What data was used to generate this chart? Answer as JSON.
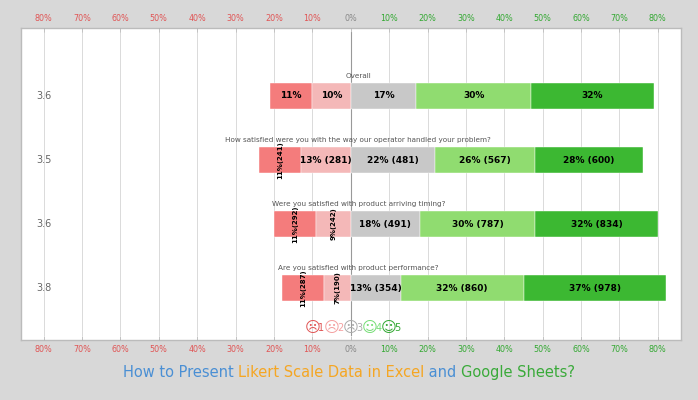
{
  "rows": [
    {
      "label": "Overall",
      "score": "3.6",
      "values": [
        -11,
        -10,
        17,
        30,
        32
      ],
      "texts": [
        "11%",
        "10%",
        "17%",
        "30%",
        "32%"
      ],
      "rotated": [
        false,
        false,
        false,
        false,
        false
      ]
    },
    {
      "label": "How satisfied were you with the way our operator handled your problem?",
      "score": "3.5",
      "values": [
        -11,
        -13,
        22,
        26,
        28
      ],
      "texts": [
        "11%(241)",
        "13% (281)",
        "22% (481)",
        "26% (567)",
        "28% (600)"
      ],
      "rotated": [
        true,
        false,
        false,
        false,
        false
      ]
    },
    {
      "label": "Were you satisfied with product arriving timing?",
      "score": "3.6",
      "values": [
        -11,
        -9,
        18,
        30,
        32
      ],
      "texts": [
        "11%(292)",
        "9%(242)",
        "18% (491)",
        "30% (787)",
        "32% (834)"
      ],
      "rotated": [
        true,
        true,
        false,
        false,
        false
      ]
    },
    {
      "label": "Are you satisfied with product performance?",
      "score": "3.8",
      "values": [
        -11,
        -7,
        13,
        32,
        37
      ],
      "texts": [
        "11%(287)",
        "7%(190)",
        "13% (354)",
        "32% (860)",
        "37% (978)"
      ],
      "rotated": [
        true,
        true,
        false,
        false,
        false
      ]
    }
  ],
  "colors": [
    "#f47c7c",
    "#f4b8b8",
    "#c8c8c8",
    "#90dc70",
    "#3cb832"
  ],
  "tick_positions": [
    -80,
    -70,
    -60,
    -50,
    -40,
    -30,
    -20,
    -10,
    0,
    10,
    20,
    30,
    40,
    50,
    60,
    70,
    80
  ],
  "axis_labels": [
    "80%",
    "70%",
    "60%",
    "50%",
    "40%",
    "30%",
    "20%",
    "10%",
    "0%",
    "10%",
    "20%",
    "30%",
    "40%",
    "50%",
    "60%",
    "70%",
    "80%"
  ],
  "neg_tick_color": "#e05555",
  "zero_tick_color": "#888888",
  "pos_tick_color": "#33a832",
  "bg_color": "#d8d8d8",
  "panel_bg": "#ffffff",
  "title_parts": [
    {
      "text": "How to Present ",
      "color": "#4a8fd4"
    },
    {
      "text": "Likert Scale Data in Excel",
      "color": "#f5a623"
    },
    {
      "text": " and ",
      "color": "#4a8fd4"
    },
    {
      "text": "Google Sheets?",
      "color": "#3aaa3a"
    }
  ],
  "legend_items": [
    {
      "emoji": "☹",
      "num": "1",
      "color": "#e05555"
    },
    {
      "emoji": "☺",
      "num": "2",
      "color": "#f4a9a9"
    },
    {
      "emoji": "☺",
      "num": "3",
      "color": "#aaaaaa"
    },
    {
      "emoji": "☺",
      "num": "4",
      "color": "#77dd77"
    },
    {
      "emoji": "☺",
      "num": "5",
      "color": "#33a832"
    }
  ]
}
